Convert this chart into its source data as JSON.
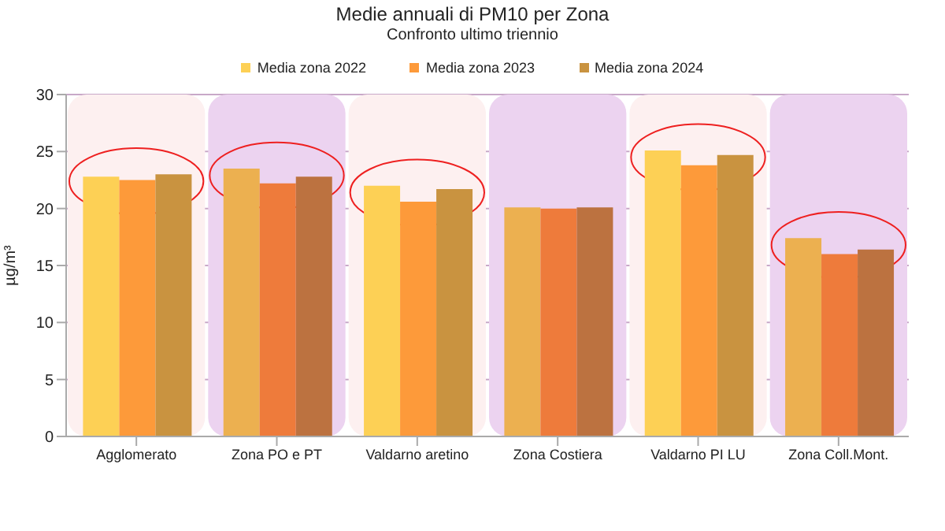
{
  "chart_data": {
    "type": "bar",
    "title": "Medie annuali di PM10 per Zona",
    "subtitle": "Confronto ultimo triennio",
    "ylabel": "µg/m³",
    "categories": [
      "Agglomerato",
      "Zona PO e PT",
      "Valdarno aretino",
      "Zona Costiera",
      "Valdarno PI LU",
      "Zona Coll.Mont."
    ],
    "series": [
      {
        "name": "Media zona 2022",
        "color": "#fdd055",
        "colors": [
          "#fdd055",
          "#ecb050",
          "#fdd055",
          "#ecb050",
          "#fdd055",
          "#ecb050"
        ],
        "values": [
          22.8,
          23.5,
          22.0,
          20.1,
          25.1,
          17.4
        ]
      },
      {
        "name": "Media zona 2023",
        "color": "#fd9a3a",
        "colors": [
          "#fd9a3a",
          "#ee7b3b",
          "#fd9a3a",
          "#ee7b3b",
          "#fd9a3a",
          "#ee7b3b"
        ],
        "values": [
          22.5,
          22.2,
          20.6,
          20.0,
          23.8,
          16.0
        ]
      },
      {
        "name": "Media zona 2024",
        "color": "#c99340",
        "colors": [
          "#c99340",
          "#bc7240",
          "#c99340",
          "#bc7240",
          "#c99340",
          "#bc7240"
        ],
        "values": [
          23.0,
          22.8,
          21.7,
          20.1,
          24.7,
          16.4
        ]
      }
    ],
    "ylim": [
      0,
      30
    ],
    "yticks": [
      0,
      5,
      10,
      15,
      20,
      25,
      30
    ],
    "grid": "y",
    "legend": "top"
  }
}
